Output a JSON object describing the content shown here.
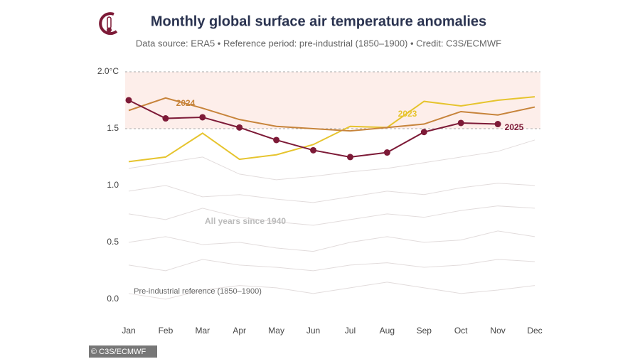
{
  "chart_data": {
    "type": "line",
    "title": "Monthly global surface air temperature anomalies",
    "subtitle": "Data source: ERA5 • Reference period: pre-industrial (1850–1900) • Credit: C3S/ECMWF",
    "credit": "© C3S/ECMWF",
    "annotations": [
      "All years since 1940",
      "Pre-industrial reference (1850–1900)"
    ],
    "categories": [
      "Jan",
      "Feb",
      "Mar",
      "Apr",
      "May",
      "Jun",
      "Jul",
      "Aug",
      "Sep",
      "Oct",
      "Nov",
      "Dec"
    ],
    "ylim": [
      -0.12,
      2.0
    ],
    "yticks": [
      {
        "value": 0,
        "label": "0.0"
      },
      0.5,
      {
        "value": 1,
        "label": "1.0"
      },
      1.5,
      {
        "value": 2,
        "label": "2.0°C"
      }
    ],
    "threshold_band": [
      1.5,
      2.0
    ],
    "background_series": [
      {
        "color": "#e2dcdc",
        "values": [
          0.05,
          0.0,
          0.08,
          0.12,
          0.1,
          0.05,
          0.1,
          0.15,
          0.1,
          0.05,
          0.08,
          0.12
        ]
      },
      {
        "color": "#e2dcdc",
        "values": [
          0.3,
          0.25,
          0.35,
          0.3,
          0.28,
          0.25,
          0.3,
          0.32,
          0.28,
          0.3,
          0.35,
          0.33
        ]
      },
      {
        "color": "#e2dcdc",
        "values": [
          0.5,
          0.55,
          0.48,
          0.5,
          0.45,
          0.42,
          0.5,
          0.55,
          0.5,
          0.52,
          0.6,
          0.55
        ]
      },
      {
        "color": "#e2dcdc",
        "values": [
          0.75,
          0.7,
          0.8,
          0.72,
          0.68,
          0.65,
          0.7,
          0.75,
          0.72,
          0.78,
          0.82,
          0.8
        ]
      },
      {
        "color": "#e2dcdc",
        "values": [
          0.95,
          1.0,
          0.9,
          0.92,
          0.88,
          0.85,
          0.9,
          0.95,
          0.92,
          0.98,
          1.02,
          1.0
        ]
      },
      {
        "color": "#e2dcdc",
        "values": [
          1.15,
          1.2,
          1.25,
          1.1,
          1.05,
          1.08,
          1.12,
          1.15,
          1.2,
          1.25,
          1.3,
          1.4
        ]
      }
    ],
    "series": [
      {
        "name": "2023",
        "color": "#e6c42e",
        "values": [
          1.21,
          1.25,
          1.46,
          1.23,
          1.27,
          1.36,
          1.52,
          1.51,
          1.74,
          1.7,
          1.75,
          1.78
        ]
      },
      {
        "name": "2024",
        "color": "#c7843b",
        "values": [
          1.66,
          1.77,
          1.68,
          1.58,
          1.52,
          1.5,
          1.48,
          1.51,
          1.54,
          1.65,
          1.62,
          1.69
        ]
      },
      {
        "name": "2025",
        "color": "#7d1a37",
        "markers": true,
        "values": [
          1.75,
          1.59,
          1.6,
          1.51,
          1.4,
          1.31,
          1.25,
          1.29,
          1.47,
          1.55,
          1.54,
          null
        ]
      }
    ]
  }
}
